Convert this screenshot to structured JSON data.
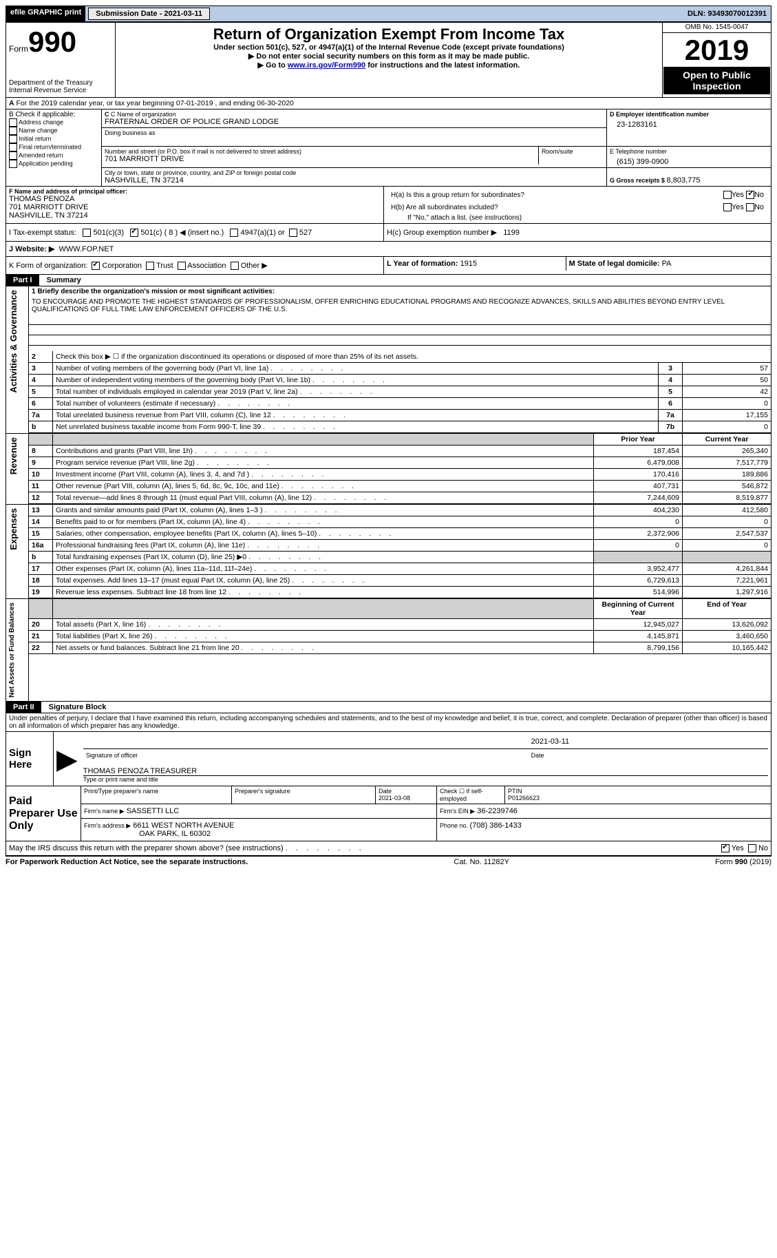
{
  "topbar": {
    "efile": "efile GRAPHIC print",
    "submission_label": "Submission Date - ",
    "submission_date": "2021-03-11",
    "dln_label": "DLN: ",
    "dln": "93493070012391"
  },
  "header": {
    "form_word": "Form",
    "form_no": "990",
    "dept1": "Department of the Treasury",
    "dept2": "Internal Revenue Service",
    "title": "Return of Organization Exempt From Income Tax",
    "sub1": "Under section 501(c), 527, or 4947(a)(1) of the Internal Revenue Code (except private foundations)",
    "sub2": "Do not enter social security numbers on this form as it may be made public.",
    "sub3a": "Go to ",
    "sub3_link": "www.irs.gov/Form990",
    "sub3b": " for instructions and the latest information.",
    "omb": "OMB No. 1545-0047",
    "year": "2019",
    "otp": "Open to Public Inspection"
  },
  "period": {
    "text": "For the 2019 calendar year, or tax year beginning 07-01-2019    , and ending 06-30-2020"
  },
  "boxB": {
    "label": "B Check if applicable:",
    "items": [
      "Address change",
      "Name change",
      "Initial return",
      "Final return/terminated",
      "Amended return",
      "Application pending"
    ]
  },
  "boxC": {
    "name_lbl": "C Name of organization",
    "name": "FRATERNAL ORDER OF POLICE GRAND LODGE",
    "dba_lbl": "Doing business as",
    "addr_lbl": "Number and street (or P.O. box if mail is not delivered to street address)",
    "room_lbl": "Room/suite",
    "addr": "701 MARRIOTT DRIVE",
    "city_lbl": "City or town, state or province, country, and ZIP or foreign postal code",
    "city": "NASHVILLE, TN  37214"
  },
  "boxD": {
    "lbl": "D Employer identification number",
    "val": "23-1283161"
  },
  "boxE": {
    "lbl": "E Telephone number",
    "val": "(615) 399-0900"
  },
  "boxG": {
    "lbl": "G Gross receipts $ ",
    "val": "8,803,775"
  },
  "boxF": {
    "lbl": "F  Name and address of principal officer:",
    "name": "THOMAS PENOZA",
    "addr1": "701 MARRIOTT DRIVE",
    "addr2": "NASHVILLE, TN  37214"
  },
  "boxH": {
    "a": "H(a)  Is this a group return for subordinates?",
    "b": "H(b)  Are all subordinates included?",
    "note": "If \"No,\" attach a list. (see instructions)",
    "c_lbl": "H(c)  Group exemption number ▶",
    "c_val": "1199",
    "yes": "Yes",
    "no": "No"
  },
  "boxI": {
    "lbl": "I   Tax-exempt status:",
    "c3": "501(c)(3)",
    "c_open": "501(c) ( 8 ) ◀ (insert no.)",
    "a1": "4947(a)(1) or",
    "five27": "527"
  },
  "boxJ": {
    "lbl": "J   Website: ▶",
    "val": "WWW.FOP.NET"
  },
  "boxK": {
    "lbl": "K Form of organization:",
    "corp": "Corporation",
    "trust": "Trust",
    "assoc": "Association",
    "other": "Other ▶"
  },
  "boxL": {
    "lbl": "L Year of formation: ",
    "val": "1915"
  },
  "boxM": {
    "lbl": "M State of legal domicile: ",
    "val": "PA"
  },
  "part1": {
    "hdr": "Part I",
    "title": "Summary"
  },
  "mission": {
    "lbl": "1   Briefly describe the organization's mission or most significant activities:",
    "text": "TO ENCOURAGE AND PROMOTE THE HIGHEST STANDARDS OF PROFESSIONALISM, OFFER ENRICHING EDUCATIONAL PROGRAMS AND RECOGNIZE ADVANCES, SKILLS AND ABILITIES BEYOND ENTRY LEVEL QUALIFICATIONS OF FULL TIME LAW ENFORCEMENT OFFICERS OF THE U.S."
  },
  "gov": {
    "l2": "Check this box ▶ ☐  if the organization discontinued its operations or disposed of more than 25% of its net assets.",
    "rows": [
      {
        "n": "3",
        "d": "Number of voting members of the governing body (Part VI, line 1a)",
        "box": "3",
        "v": "57"
      },
      {
        "n": "4",
        "d": "Number of independent voting members of the governing body (Part VI, line 1b)",
        "box": "4",
        "v": "50"
      },
      {
        "n": "5",
        "d": "Total number of individuals employed in calendar year 2019 (Part V, line 2a)",
        "box": "5",
        "v": "42"
      },
      {
        "n": "6",
        "d": "Total number of volunteers (estimate if necessary)",
        "box": "6",
        "v": "0"
      },
      {
        "n": "7a",
        "d": "Total unrelated business revenue from Part VIII, column (C), line 12",
        "box": "7a",
        "v": "17,155"
      },
      {
        "n": "b",
        "d": "Net unrelated business taxable income from Form 990-T, line 39",
        "box": "7b",
        "v": "0"
      }
    ]
  },
  "col_hdrs": {
    "prior": "Prior Year",
    "current": "Current Year"
  },
  "revenue": [
    {
      "n": "8",
      "d": "Contributions and grants (Part VIII, line 1h)",
      "p": "187,454",
      "c": "265,340"
    },
    {
      "n": "9",
      "d": "Program service revenue (Part VIII, line 2g)",
      "p": "6,479,008",
      "c": "7,517,779"
    },
    {
      "n": "10",
      "d": "Investment income (Part VIII, column (A), lines 3, 4, and 7d )",
      "p": "170,416",
      "c": "189,886"
    },
    {
      "n": "11",
      "d": "Other revenue (Part VIII, column (A), lines 5, 6d, 8c, 9c, 10c, and 11e)",
      "p": "407,731",
      "c": "546,872"
    },
    {
      "n": "12",
      "d": "Total revenue—add lines 8 through 11 (must equal Part VIII, column (A), line 12)",
      "p": "7,244,609",
      "c": "8,519,877"
    }
  ],
  "expenses": [
    {
      "n": "13",
      "d": "Grants and similar amounts paid (Part IX, column (A), lines 1–3 )",
      "p": "404,230",
      "c": "412,580"
    },
    {
      "n": "14",
      "d": "Benefits paid to or for members (Part IX, column (A), line 4)",
      "p": "0",
      "c": "0"
    },
    {
      "n": "15",
      "d": "Salaries, other compensation, employee benefits (Part IX, column (A), lines 5–10)",
      "p": "2,372,906",
      "c": "2,547,537"
    },
    {
      "n": "16a",
      "d": "Professional fundraising fees (Part IX, column (A), line 11e)",
      "p": "0",
      "c": "0"
    },
    {
      "n": "b",
      "d": "Total fundraising expenses (Part IX, column (D), line 25) ▶0",
      "p": "SHADE",
      "c": "SHADE"
    },
    {
      "n": "17",
      "d": "Other expenses (Part IX, column (A), lines 11a–11d, 11f–24e)",
      "p": "3,952,477",
      "c": "4,261,844"
    },
    {
      "n": "18",
      "d": "Total expenses. Add lines 13–17 (must equal Part IX, column (A), line 25)",
      "p": "6,729,613",
      "c": "7,221,961"
    },
    {
      "n": "19",
      "d": "Revenue less expenses. Subtract line 18 from line 12",
      "p": "514,996",
      "c": "1,297,916"
    }
  ],
  "col_hdrs2": {
    "begin": "Beginning of Current Year",
    "end": "End of Year"
  },
  "net": [
    {
      "n": "20",
      "d": "Total assets (Part X, line 16)",
      "p": "12,945,027",
      "c": "13,626,092"
    },
    {
      "n": "21",
      "d": "Total liabilities (Part X, line 26)",
      "p": "4,145,871",
      "c": "3,460,650"
    },
    {
      "n": "22",
      "d": "Net assets or fund balances. Subtract line 21 from line 20",
      "p": "8,799,156",
      "c": "10,165,442"
    }
  ],
  "vlabels": {
    "gov": "Activities & Governance",
    "rev": "Revenue",
    "exp": "Expenses",
    "net": "Net Assets or Fund Balances"
  },
  "part2": {
    "hdr": "Part II",
    "title": "Signature Block"
  },
  "declaration": "Under penalties of perjury, I declare that I have examined this return, including accompanying schedules and statements, and to the best of my knowledge and belief, it is true, correct, and complete. Declaration of preparer (other than officer) is based on all information of which preparer has any knowledge.",
  "sign": {
    "here": "Sign Here",
    "sig_officer": "Signature of officer",
    "date": "Date",
    "date_val": "2021-03-11",
    "name_title": "THOMAS PENOZA  TREASURER",
    "type_name": "Type or print name and title"
  },
  "paid": {
    "title": "Paid Preparer Use Only",
    "print_name": "Print/Type preparer's name",
    "prep_sig": "Preparer's signature",
    "date_lbl": "Date",
    "date_val": "2021-03-08",
    "check_lbl": "Check ☐ if self-employed",
    "ptin_lbl": "PTIN",
    "ptin": "P01266623",
    "firm_name_lbl": "Firm's name   ▶",
    "firm_name": "SASSETTI LLC",
    "firm_ein_lbl": "Firm's EIN ▶",
    "firm_ein": "36-2239746",
    "firm_addr_lbl": "Firm's address ▶",
    "firm_addr1": "6611 WEST NORTH AVENUE",
    "firm_addr2": "OAK PARK, IL  60302",
    "phone_lbl": "Phone no. ",
    "phone": "(708) 386-1433"
  },
  "discuss": {
    "q": "May the IRS discuss this return with the preparer shown above? (see instructions)",
    "yes": "Yes",
    "no": "No"
  },
  "footer": {
    "left": "For Paperwork Reduction Act Notice, see the separate instructions.",
    "mid": "Cat. No. 11282Y",
    "right": "Form 990 (2019)"
  }
}
